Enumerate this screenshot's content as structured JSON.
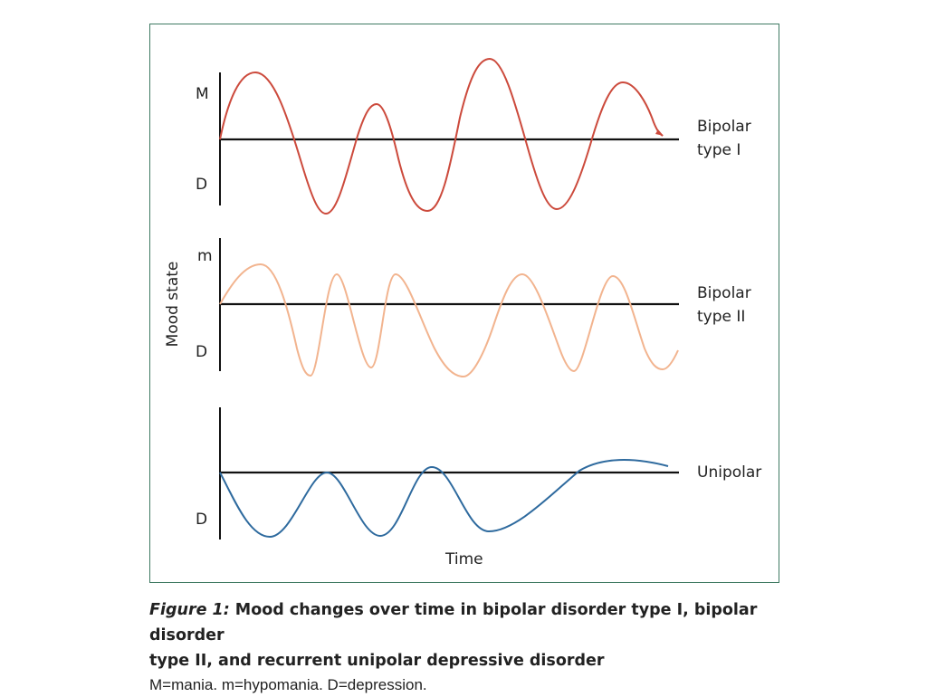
{
  "diagram": {
    "y_axis_label": "Mood state",
    "x_axis_label": "Time",
    "panels": [
      {
        "name": "Bipolar type I",
        "label_lines": [
          "Bipolar",
          "type I"
        ],
        "upper_label": "M",
        "lower_label": "D",
        "color": "#cc4a3c"
      },
      {
        "name": "Bipolar type II",
        "label_lines": [
          "Bipolar",
          "type II"
        ],
        "upper_label": "m",
        "lower_label": "D",
        "color": "#f2b48f"
      },
      {
        "name": "Unipolar",
        "label_lines": [
          "Unipolar"
        ],
        "upper_label": "",
        "lower_label": "D",
        "color": "#2e6a9e"
      }
    ]
  },
  "caption": {
    "figure_ref": "Figure 1:",
    "title_line1": " Mood changes over time in bipolar disorder type I, bipolar disorder",
    "title_line2": "type II, and recurrent unipolar depressive disorder",
    "note": "M=mania. m=hypomania. D=depression."
  },
  "colors": {
    "frame": "#3f7a62",
    "axis": "#111111"
  }
}
